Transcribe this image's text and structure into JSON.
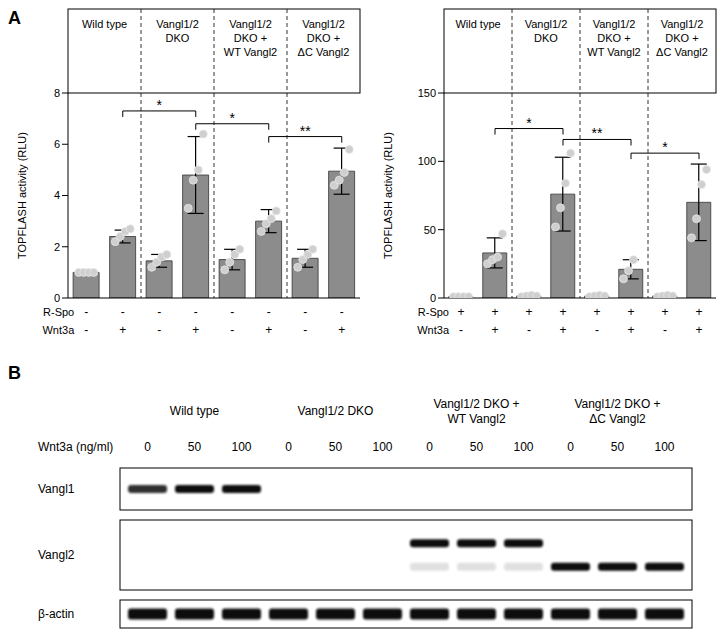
{
  "panel_labels": [
    "A",
    "B"
  ],
  "chart_data": [
    {
      "type": "bar",
      "y_label": "TOPFLASH activity (RLU)",
      "groups": [
        [
          "Wild type"
        ],
        [
          "Vangl1/2",
          "DKO"
        ],
        [
          "Vangl1/2",
          "DKO +",
          "WT Vangl2"
        ],
        [
          "Vangl1/2",
          "DKO +",
          "ΔC Vangl2"
        ]
      ],
      "conditions": [
        {
          "label": "R-Spo",
          "values": [
            "-",
            "-",
            "-",
            "-",
            "-",
            "-",
            "-",
            "-"
          ]
        },
        {
          "label": "Wnt3a",
          "values": [
            "-",
            "+",
            "-",
            "+",
            "-",
            "+",
            "-",
            "+"
          ]
        }
      ],
      "values": [
        1.0,
        2.4,
        1.45,
        4.8,
        1.5,
        3.0,
        1.55,
        4.95
      ],
      "errors": [
        0,
        0.25,
        0.25,
        1.5,
        0.4,
        0.45,
        0.35,
        0.9
      ],
      "points": [
        [
          1,
          1,
          1,
          1
        ],
        [
          2.2,
          2.4,
          2.6,
          2.7
        ],
        [
          1.2,
          1.4,
          1.6,
          1.7
        ],
        [
          3.5,
          4.6,
          5.0,
          6.4
        ],
        [
          1.1,
          1.4,
          1.7,
          1.9
        ],
        [
          2.6,
          2.9,
          3.1,
          3.4
        ],
        [
          1.2,
          1.5,
          1.7,
          1.9
        ],
        [
          4.4,
          4.6,
          4.9,
          5.8
        ]
      ],
      "color": "#8c8c8c",
      "ylim": [
        0,
        8
      ],
      "yticks": [
        0,
        2,
        4,
        6,
        8
      ],
      "significance": [
        {
          "from": 1,
          "to": 3,
          "y": 7.3,
          "label": "*"
        },
        {
          "from": 3,
          "to": 5,
          "y": 6.8,
          "label": "*"
        },
        {
          "from": 5,
          "to": 7,
          "y": 6.3,
          "label": "**"
        }
      ]
    },
    {
      "type": "bar",
      "y_label": "TOPFLASH activity (RLU)",
      "groups": [
        [
          "Wild type"
        ],
        [
          "Vangl1/2",
          "DKO"
        ],
        [
          "Vangl1/2",
          "DKO +",
          "WT Vangl2"
        ],
        [
          "Vangl1/2",
          "DKO +",
          "ΔC Vangl2"
        ]
      ],
      "conditions": [
        {
          "label": "R-Spo",
          "values": [
            "+",
            "+",
            "+",
            "+",
            "+",
            "+",
            "+",
            "+"
          ]
        },
        {
          "label": "Wnt3a",
          "values": [
            "-",
            "+",
            "-",
            "+",
            "-",
            "+",
            "-",
            "+"
          ]
        }
      ],
      "values": [
        1,
        33,
        1.5,
        76,
        1.5,
        21,
        1.5,
        70
      ],
      "errors": [
        0,
        11,
        0.6,
        27,
        0.6,
        7,
        0.6,
        28
      ],
      "points": [
        [
          1,
          1,
          1,
          1
        ],
        [
          25,
          28,
          30,
          47
        ],
        [
          1,
          1.5,
          2,
          1.5
        ],
        [
          52,
          66,
          84,
          106
        ],
        [
          1,
          1.5,
          2,
          1.5
        ],
        [
          14,
          20,
          28
        ],
        [
          1,
          1.5,
          2,
          1.5
        ],
        [
          44,
          58,
          83,
          94
        ]
      ],
      "color": "#8c8c8c",
      "ylim": [
        0,
        150
      ],
      "yticks": [
        0,
        50,
        100,
        150
      ],
      "significance": [
        {
          "from": 1,
          "to": 3,
          "y": 124,
          "label": "*"
        },
        {
          "from": 3,
          "to": 5,
          "y": 116,
          "label": "**"
        },
        {
          "from": 5,
          "to": 7,
          "y": 106,
          "label": "*"
        }
      ]
    }
  ],
  "western_blot": {
    "treatment_label": "Wnt3a (ng/ml)",
    "groups": [
      [
        "Wild type"
      ],
      [
        "Vangl1/2 DKO"
      ],
      [
        "Vangl1/2 DKO +",
        "WT Vangl2"
      ],
      [
        "Vangl1/2 DKO +",
        "ΔC Vangl2"
      ]
    ],
    "doses": [
      0,
      50,
      100,
      0,
      50,
      100,
      0,
      50,
      100,
      0,
      50,
      100
    ],
    "rows": [
      {
        "label": "Vangl1",
        "bands": [
          [
            0.85,
            1,
            1,
            0,
            0,
            0,
            0,
            0,
            0,
            0,
            0,
            0
          ]
        ]
      },
      {
        "label": "Vangl2",
        "bands": [
          [
            0,
            0,
            0,
            0,
            0,
            0,
            1,
            1,
            1,
            0,
            0,
            0
          ],
          [
            0,
            0,
            0,
            0,
            0,
            0,
            0.12,
            0.12,
            0.12,
            1,
            1,
            1
          ]
        ]
      },
      {
        "label": "β-actin",
        "bands": [
          [
            1,
            1,
            1,
            1,
            1,
            1,
            1,
            1,
            1,
            1,
            1,
            1
          ]
        ]
      }
    ]
  }
}
